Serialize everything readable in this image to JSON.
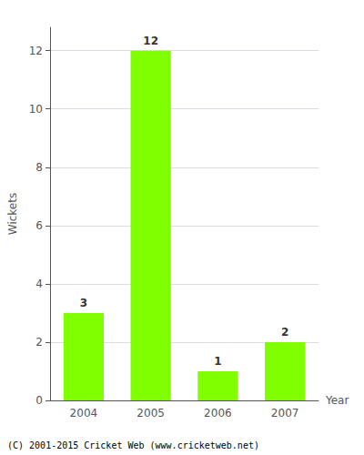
{
  "chart_data": {
    "type": "bar",
    "categories": [
      "2004",
      "2005",
      "2006",
      "2007"
    ],
    "values": [
      3,
      12,
      1,
      2
    ],
    "color": "#7fff00",
    "xlabel": "Year",
    "ylabel": "Wickets",
    "ylim": [
      0,
      12.8
    ],
    "yticks": [
      0,
      2,
      4,
      6,
      8,
      10,
      12
    ],
    "grid": true,
    "data_labels": true,
    "annotations": [
      "(C) 2001-2015 Cricket Web (www.cricketweb.net)"
    ]
  }
}
